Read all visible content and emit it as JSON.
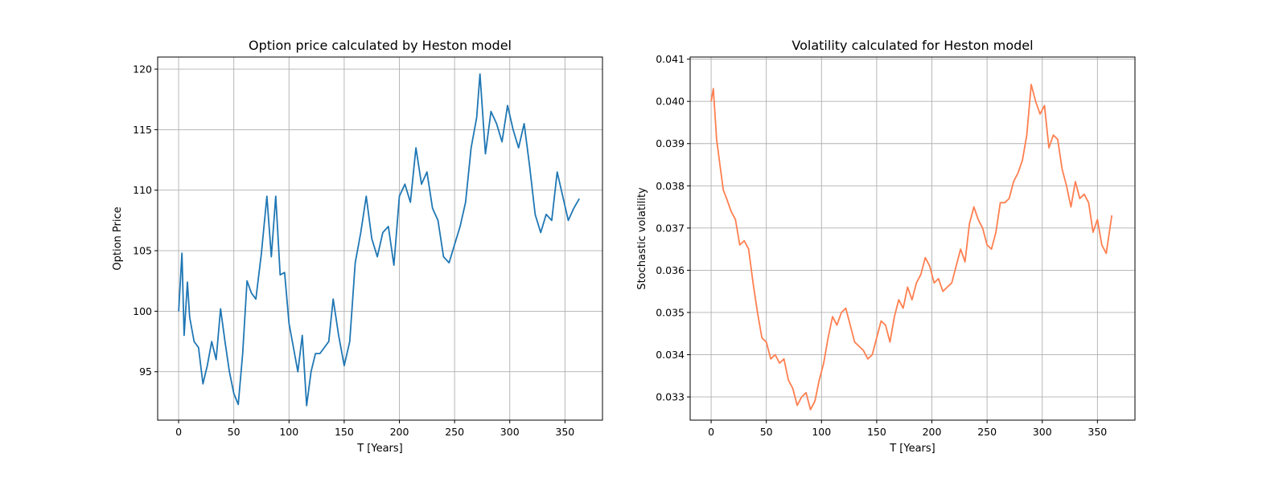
{
  "chart_data": [
    {
      "type": "line",
      "title": "Option price calculated by Heston model",
      "xlabel": "T [Years]",
      "ylabel": "Option Price",
      "xlim": [
        -19,
        384
      ],
      "ylim": [
        91,
        121
      ],
      "xticks": [
        0,
        50,
        100,
        150,
        200,
        250,
        300,
        350
      ],
      "yticks": [
        95,
        100,
        105,
        110,
        115,
        120
      ],
      "grid": true,
      "series": [
        {
          "color": "#1f77b4",
          "x": [
            0,
            3,
            5,
            8,
            10,
            14,
            18,
            22,
            26,
            30,
            34,
            38,
            42,
            46,
            50,
            54,
            58,
            62,
            66,
            70,
            75,
            80,
            84,
            88,
            92,
            96,
            100,
            104,
            108,
            112,
            116,
            120,
            124,
            128,
            132,
            136,
            140,
            145,
            150,
            155,
            160,
            165,
            170,
            175,
            180,
            185,
            190,
            195,
            200,
            205,
            210,
            215,
            220,
            225,
            230,
            235,
            240,
            245,
            250,
            255,
            260,
            265,
            270,
            273,
            278,
            283,
            288,
            293,
            298,
            303,
            308,
            313,
            318,
            323,
            328,
            333,
            338,
            343,
            348,
            353,
            358,
            363
          ],
          "values": [
            100.0,
            104.8,
            98.0,
            102.4,
            99.5,
            97.5,
            97.0,
            94.0,
            95.5,
            97.5,
            96.0,
            100.2,
            97.5,
            95.0,
            93.2,
            92.3,
            96.5,
            102.5,
            101.5,
            101.0,
            104.8,
            109.5,
            104.5,
            109.5,
            103.0,
            103.2,
            99.0,
            97.0,
            95.0,
            98.0,
            92.2,
            95.0,
            96.5,
            96.5,
            97.0,
            97.5,
            101.0,
            98.0,
            95.5,
            97.5,
            104.0,
            106.5,
            109.5,
            106.0,
            104.5,
            106.5,
            107.0,
            103.8,
            109.5,
            110.5,
            109.0,
            113.5,
            110.5,
            111.5,
            108.5,
            107.5,
            104.5,
            104.0,
            105.5,
            107.0,
            109.0,
            113.5,
            116.0,
            119.6,
            113.0,
            116.5,
            115.5,
            114.0,
            117.0,
            115.0,
            113.5,
            115.5,
            112.0,
            108.0,
            106.5,
            108.0,
            107.5,
            111.5,
            109.5,
            107.5,
            108.5,
            109.3
          ]
        }
      ]
    },
    {
      "type": "line",
      "title": "Volatility calculated for Heston model",
      "xlabel": "T [Years]",
      "ylabel": "Stochastic volatility",
      "xlim": [
        -19,
        384
      ],
      "ylim": [
        0.03245,
        0.04105
      ],
      "xticks": [
        0,
        50,
        100,
        150,
        200,
        250,
        300,
        350
      ],
      "yticks": [
        0.033,
        0.034,
        0.035,
        0.036,
        0.037,
        0.038,
        0.039,
        0.04,
        0.041
      ],
      "grid": true,
      "series": [
        {
          "color": "#ff7f50",
          "x": [
            0,
            2,
            5,
            8,
            11,
            14,
            18,
            22,
            26,
            30,
            34,
            38,
            42,
            46,
            50,
            54,
            58,
            62,
            66,
            70,
            74,
            78,
            82,
            86,
            90,
            94,
            98,
            102,
            106,
            110,
            114,
            118,
            122,
            126,
            130,
            134,
            138,
            142,
            146,
            150,
            154,
            158,
            162,
            166,
            170,
            174,
            178,
            182,
            186,
            190,
            194,
            198,
            202,
            206,
            210,
            214,
            218,
            222,
            226,
            230,
            234,
            238,
            242,
            246,
            250,
            254,
            258,
            262,
            266,
            270,
            274,
            278,
            282,
            286,
            290,
            294,
            298,
            302,
            306,
            310,
            314,
            318,
            322,
            326,
            330,
            334,
            338,
            342,
            346,
            350,
            354,
            358,
            363
          ],
          "values": [
            0.04,
            0.0403,
            0.0391,
            0.0385,
            0.0379,
            0.0377,
            0.0374,
            0.0372,
            0.0366,
            0.0367,
            0.0365,
            0.0357,
            0.035,
            0.0344,
            0.0343,
            0.0339,
            0.034,
            0.0338,
            0.0339,
            0.0334,
            0.0332,
            0.0328,
            0.033,
            0.0331,
            0.0327,
            0.0329,
            0.0334,
            0.0338,
            0.0344,
            0.0349,
            0.0347,
            0.035,
            0.0351,
            0.0347,
            0.0343,
            0.0342,
            0.0341,
            0.0339,
            0.034,
            0.0344,
            0.0348,
            0.0347,
            0.0343,
            0.0349,
            0.0353,
            0.0351,
            0.0356,
            0.0353,
            0.0357,
            0.0359,
            0.0363,
            0.0361,
            0.0357,
            0.0358,
            0.0355,
            0.0356,
            0.0357,
            0.0361,
            0.0365,
            0.0362,
            0.0371,
            0.0375,
            0.0372,
            0.037,
            0.0366,
            0.0365,
            0.0369,
            0.0376,
            0.0376,
            0.0377,
            0.0381,
            0.0383,
            0.0386,
            0.0392,
            0.0404,
            0.04,
            0.0397,
            0.0399,
            0.0389,
            0.0392,
            0.0391,
            0.0384,
            0.038,
            0.0375,
            0.0381,
            0.0377,
            0.0378,
            0.0376,
            0.0369,
            0.0372,
            0.0366,
            0.0364,
            0.0373
          ]
        }
      ]
    }
  ],
  "colors": {
    "price_line": "#1f77b4",
    "volatility_line": "#ff7f50",
    "grid": "#b0b0b0"
  }
}
